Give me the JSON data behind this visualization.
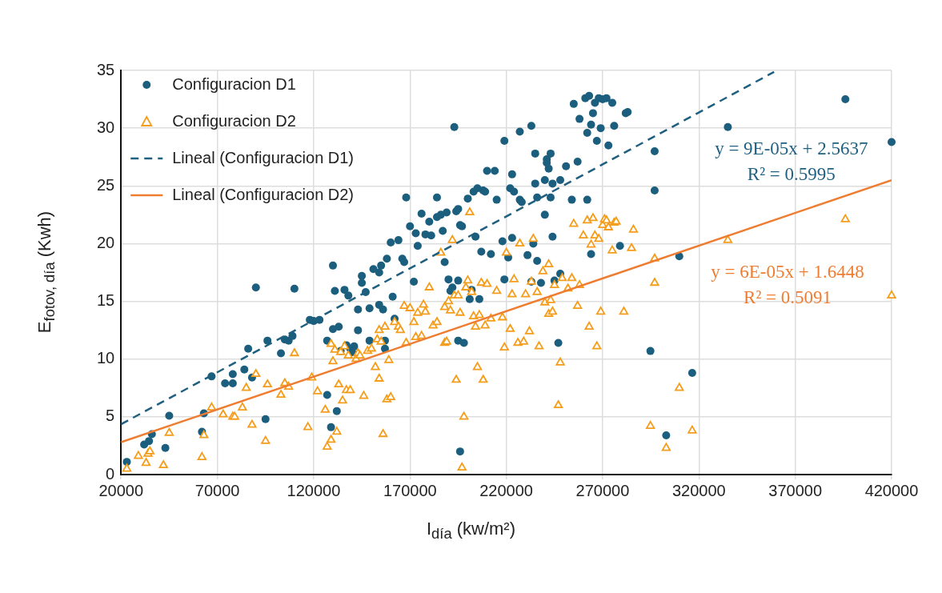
{
  "chart_data": {
    "type": "scatter",
    "xlabel": "I$_{día}$ (kw/m²)",
    "ylabel": "E$_{fotov, día}$ (Kwh)",
    "xlim": [
      20000,
      420000
    ],
    "xticks": [
      20000,
      70000,
      120000,
      170000,
      220000,
      270000,
      320000,
      370000,
      420000
    ],
    "ylim": [
      0,
      35
    ],
    "yticks": [
      0,
      5,
      10,
      15,
      20,
      25,
      30,
      35
    ],
    "grid": true,
    "legend": "top left",
    "series": [
      {
        "name": "Configuracion D1",
        "type": "scatter",
        "marker": "circle",
        "color": "#1b5e7e",
        "x": [
          23000,
          32000,
          34500,
          36000,
          43000,
          45000,
          62000,
          63000,
          67000,
          74000,
          78000,
          78000,
          84000,
          86000,
          88000,
          90000,
          95000,
          96000,
          103000,
          105000,
          107000,
          109000,
          110000,
          118000,
          120000,
          123000,
          127000,
          127000,
          129000,
          130000,
          130000,
          131000,
          132000,
          133000,
          134000,
          136000,
          137000,
          138000,
          139000,
          140000,
          141000,
          143000,
          143000,
          145000,
          145000,
          147000,
          149000,
          149000,
          151000,
          154000,
          154000,
          155000,
          156000,
          157000,
          157000,
          158000,
          160000,
          161000,
          162000,
          164000,
          166000,
          167000,
          168000,
          170000,
          172000,
          173000,
          174000,
          176000,
          178000,
          180000,
          181000,
          184000,
          184000,
          186000,
          187000,
          188000,
          189000,
          190000,
          191000,
          192000,
          193000,
          194000,
          195000,
          195000,
          195000,
          196000,
          197000,
          198000,
          196000,
          200000,
          201000,
          202000,
          203000,
          204000,
          205000,
          206000,
          207000,
          208000,
          209000,
          210000,
          212000,
          214000,
          215000,
          218000,
          219000,
          219000,
          221000,
          222000,
          223000,
          223000,
          224000,
          227000,
          227000,
          228000,
          231000,
          233000,
          233000,
          234000,
          235000,
          235000,
          236000,
          236000,
          238000,
          240000,
          240000,
          241000,
          241000,
          242000,
          243000,
          243000,
          244000,
          244000,
          245000,
          247000,
          248000,
          248000,
          251000,
          254000,
          255000,
          257000,
          258000,
          261000,
          262000,
          262000,
          263000,
          264000,
          264000,
          265000,
          266000,
          267000,
          268000,
          269000,
          270000,
          272000,
          273000,
          275000,
          276000,
          279000,
          282000,
          283000,
          294800,
          297000,
          297000,
          303000,
          309800,
          316500,
          335000,
          396000,
          420000
        ],
        "values": [
          1.1,
          2.6,
          2.9,
          3.5,
          2.3,
          5.1,
          3.7,
          5.3,
          8.5,
          7.9,
          7.9,
          8.7,
          9.1,
          10.9,
          8.4,
          16.2,
          4.8,
          11.6,
          10.5,
          11.7,
          11.6,
          12.0,
          16.1,
          13.4,
          13.3,
          13.4,
          11.6,
          6.9,
          4.1,
          18.1,
          12.6,
          15.9,
          5.5,
          12.8,
          10.7,
          16.0,
          11.2,
          15.5,
          10.9,
          10.6,
          11.1,
          12.5,
          14.3,
          16.6,
          17.2,
          15.8,
          11.6,
          14.4,
          17.8,
          14.7,
          17.5,
          18.1,
          14.3,
          10.9,
          11.6,
          18.7,
          20.1,
          15.4,
          13.5,
          20.3,
          18.7,
          18.4,
          24.0,
          21.5,
          16.7,
          20.9,
          19.8,
          22.6,
          20.8,
          21.9,
          20.7,
          24.0,
          22.3,
          22.5,
          21.1,
          18.4,
          22.7,
          16.9,
          15.9,
          16.2,
          30.1,
          22.8,
          11.6,
          23.0,
          16.8,
          21.6,
          21.5,
          11.4,
          2.0,
          23.9,
          15.2,
          16.0,
          24.5,
          20.6,
          24.8,
          15.2,
          19.3,
          24.6,
          24.5,
          26.3,
          19.1,
          26.3,
          23.8,
          20.2,
          16.9,
          28.9,
          18.8,
          24.8,
          26.0,
          20.5,
          24.5,
          29.7,
          23.8,
          23.6,
          19.0,
          30.2,
          16.7,
          20.0,
          27.8,
          25.2,
          24.0,
          18.5,
          16.6,
          22.5,
          25.5,
          27.3,
          27.0,
          26.5,
          27.8,
          24.0,
          25.2,
          20.6,
          16.8,
          11.4,
          25.5,
          17.4,
          26.7,
          23.8,
          32.1,
          27.1,
          30.8,
          32.6,
          29.6,
          23.8,
          32.8,
          30.3,
          19.1,
          31.3,
          32.2,
          28.9,
          32.6,
          30.0,
          32.5,
          32.6,
          28.5,
          32.2,
          30.2,
          19.8,
          31.3,
          31.4,
          10.7,
          24.6,
          28.0,
          3.4,
          18.9,
          8.8,
          30.1,
          32.5,
          28.8
        ]
      },
      {
        "name": "Configuracion D2",
        "type": "scatter",
        "marker": "triangle",
        "color": "#f59d1b",
        "x": [
          23000,
          29000,
          33000,
          34000,
          35000,
          42000,
          45000,
          62000,
          63000,
          67000,
          73000,
          78000,
          79000,
          83000,
          85000,
          88000,
          90000,
          95000,
          96000,
          103000,
          105000,
          107000,
          110000,
          117000,
          119000,
          122000,
          126000,
          127000,
          129000,
          129000,
          130000,
          131000,
          132000,
          133000,
          134000,
          135000,
          136000,
          137000,
          138000,
          139000,
          142000,
          143000,
          144000,
          146000,
          148000,
          150000,
          152000,
          153000,
          154000,
          154000,
          155000,
          156000,
          157000,
          158000,
          159000,
          160000,
          162000,
          164000,
          165000,
          167000,
          168000,
          170000,
          172000,
          173000,
          174000,
          176000,
          177000,
          178000,
          180000,
          182000,
          184000,
          186000,
          188000,
          188000,
          189000,
          190000,
          191000,
          192000,
          193000,
          194000,
          195000,
          196000,
          197000,
          198000,
          199000,
          200000,
          201000,
          202000,
          203000,
          204000,
          205000,
          206000,
          207000,
          208000,
          209000,
          210000,
          212000,
          215000,
          218000,
          219000,
          220000,
          222000,
          223000,
          224000,
          226000,
          227000,
          229000,
          230000,
          232000,
          233000,
          234000,
          236000,
          237000,
          239000,
          240000,
          242000,
          242000,
          243000,
          244000,
          245000,
          247000,
          248000,
          249000,
          252000,
          254000,
          255000,
          257000,
          258000,
          260000,
          262000,
          263000,
          264000,
          265000,
          266000,
          267000,
          268000,
          269000,
          270000,
          271000,
          272000,
          273000,
          275000,
          276000,
          277000,
          281000,
          285000,
          286000,
          294800,
          297000,
          297000,
          303000,
          309800,
          316500,
          335000,
          396000,
          420000
        ],
        "values": [
          0.5,
          1.6,
          1.0,
          1.8,
          2.0,
          0.8,
          3.6,
          1.5,
          3.4,
          5.8,
          5.2,
          5.0,
          5.0,
          5.8,
          7.5,
          4.3,
          8.7,
          2.9,
          7.8,
          6.9,
          7.9,
          7.6,
          10.5,
          4.1,
          8.4,
          7.2,
          5.6,
          2.4,
          11.3,
          3.0,
          9.8,
          10.8,
          3.7,
          7.8,
          10.6,
          6.4,
          11.1,
          7.3,
          10.3,
          7.3,
          10.0,
          10.5,
          10.3,
          6.8,
          10.7,
          10.9,
          9.3,
          11.7,
          12.5,
          8.3,
          11.5,
          3.5,
          12.8,
          6.5,
          9.9,
          6.7,
          13.2,
          12.8,
          12.5,
          14.6,
          11.4,
          14.4,
          13.2,
          11.9,
          14.0,
          12.0,
          14.7,
          14.1,
          16.2,
          12.9,
          13.2,
          19.2,
          14.5,
          11.4,
          11.5,
          15.0,
          14.2,
          20.3,
          15.5,
          8.2,
          15.5,
          14.0,
          0.6,
          5.0,
          16.2,
          16.8,
          22.7,
          15.8,
          13.7,
          12.8,
          9.3,
          13.8,
          16.6,
          8.2,
          12.9,
          16.5,
          13.5,
          15.9,
          13.6,
          11.0,
          19.2,
          12.6,
          15.6,
          16.9,
          11.4,
          20.0,
          11.5,
          15.6,
          12.4,
          16.7,
          20.4,
          15.8,
          11.1,
          17.6,
          14.9,
          18.2,
          13.9,
          15.1,
          14.1,
          16.4,
          6.0,
          9.7,
          17.0,
          16.1,
          17.0,
          21.7,
          14.6,
          16.4,
          20.7,
          22.0,
          12.8,
          19.9,
          22.2,
          20.7,
          11.1,
          20.4,
          14.1,
          21.6,
          22.1,
          22.0,
          21.4,
          19.4,
          21.8,
          21.9,
          14.1,
          19.6,
          21.2,
          4.2,
          18.7,
          16.6,
          2.3,
          7.5,
          3.8,
          20.3,
          22.1,
          15.5
        ]
      },
      {
        "name": "Lineal (Configuracion D1)",
        "type": "line",
        "line_style": "dashed",
        "color": "#1f5f7f",
        "x": [
          20000,
          359000
        ],
        "values": [
          4.36,
          34.87
        ]
      },
      {
        "name": "Lineal (Configuracion D2)",
        "type": "line",
        "line_style": "solid",
        "color": "#ee7d31",
        "x": [
          20000,
          420000
        ],
        "values": [
          2.8,
          25.5
        ]
      }
    ],
    "annotations": [
      "y = 9E-05x + 2.5637",
      "R² = 0.5995",
      "y = 6E-05x + 1.6448",
      "R² = 0.5091"
    ]
  }
}
